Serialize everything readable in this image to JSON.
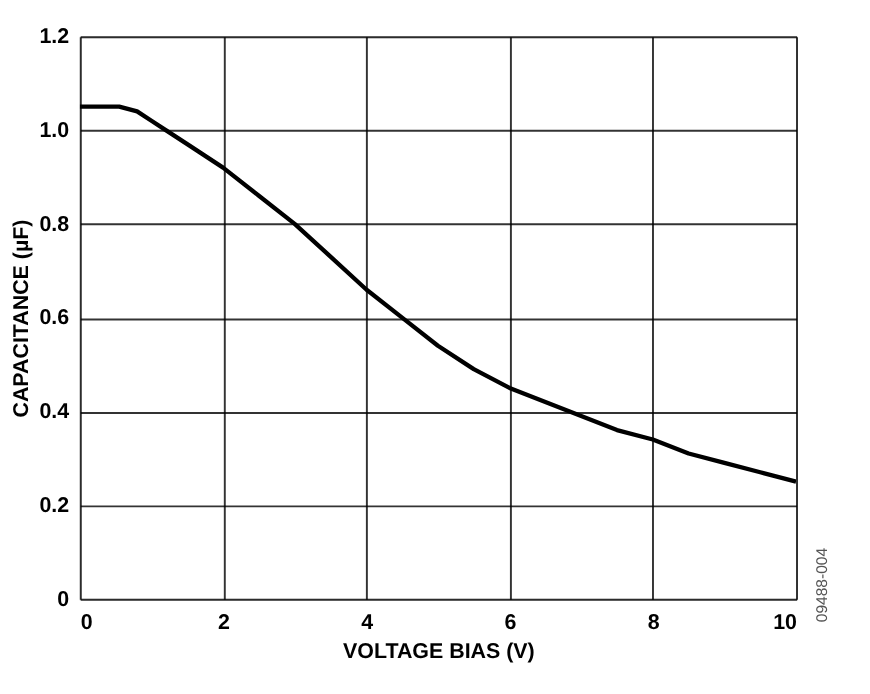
{
  "chart_data": {
    "type": "line",
    "xlabel": "VOLTAGE BIAS (V)",
    "ylabel": "CAPACITANCE (µF)",
    "x": [
      0,
      0.3,
      0.55,
      0.8,
      1.0,
      1.2,
      1.5,
      2,
      2.5,
      3,
      3.5,
      4,
      4.5,
      5,
      5.5,
      6,
      6.5,
      7,
      7.5,
      8,
      8.5,
      9,
      9.5,
      10
    ],
    "series": [
      {
        "color": "#000000",
        "values": [
          1.05,
          1.05,
          1.05,
          1.04,
          1.02,
          1.0,
          0.97,
          0.92,
          0.86,
          0.8,
          0.73,
          0.66,
          0.6,
          0.54,
          0.49,
          0.45,
          0.42,
          0.39,
          0.36,
          0.34,
          0.31,
          0.29,
          0.27,
          0.25
        ]
      }
    ],
    "xlim": [
      0,
      10
    ],
    "xticks": [
      0,
      2,
      4,
      6,
      8,
      10
    ],
    "ylim": [
      0,
      1.2
    ],
    "yticks": [
      {
        "value": 0,
        "label": "0"
      },
      0.2,
      0.4,
      0.6,
      0.8,
      {
        "value": 1,
        "label": "1.0"
      },
      1.2
    ],
    "grid": true,
    "line_style": "solid",
    "marker": "none",
    "annotations": [
      "09488-004"
    ]
  }
}
